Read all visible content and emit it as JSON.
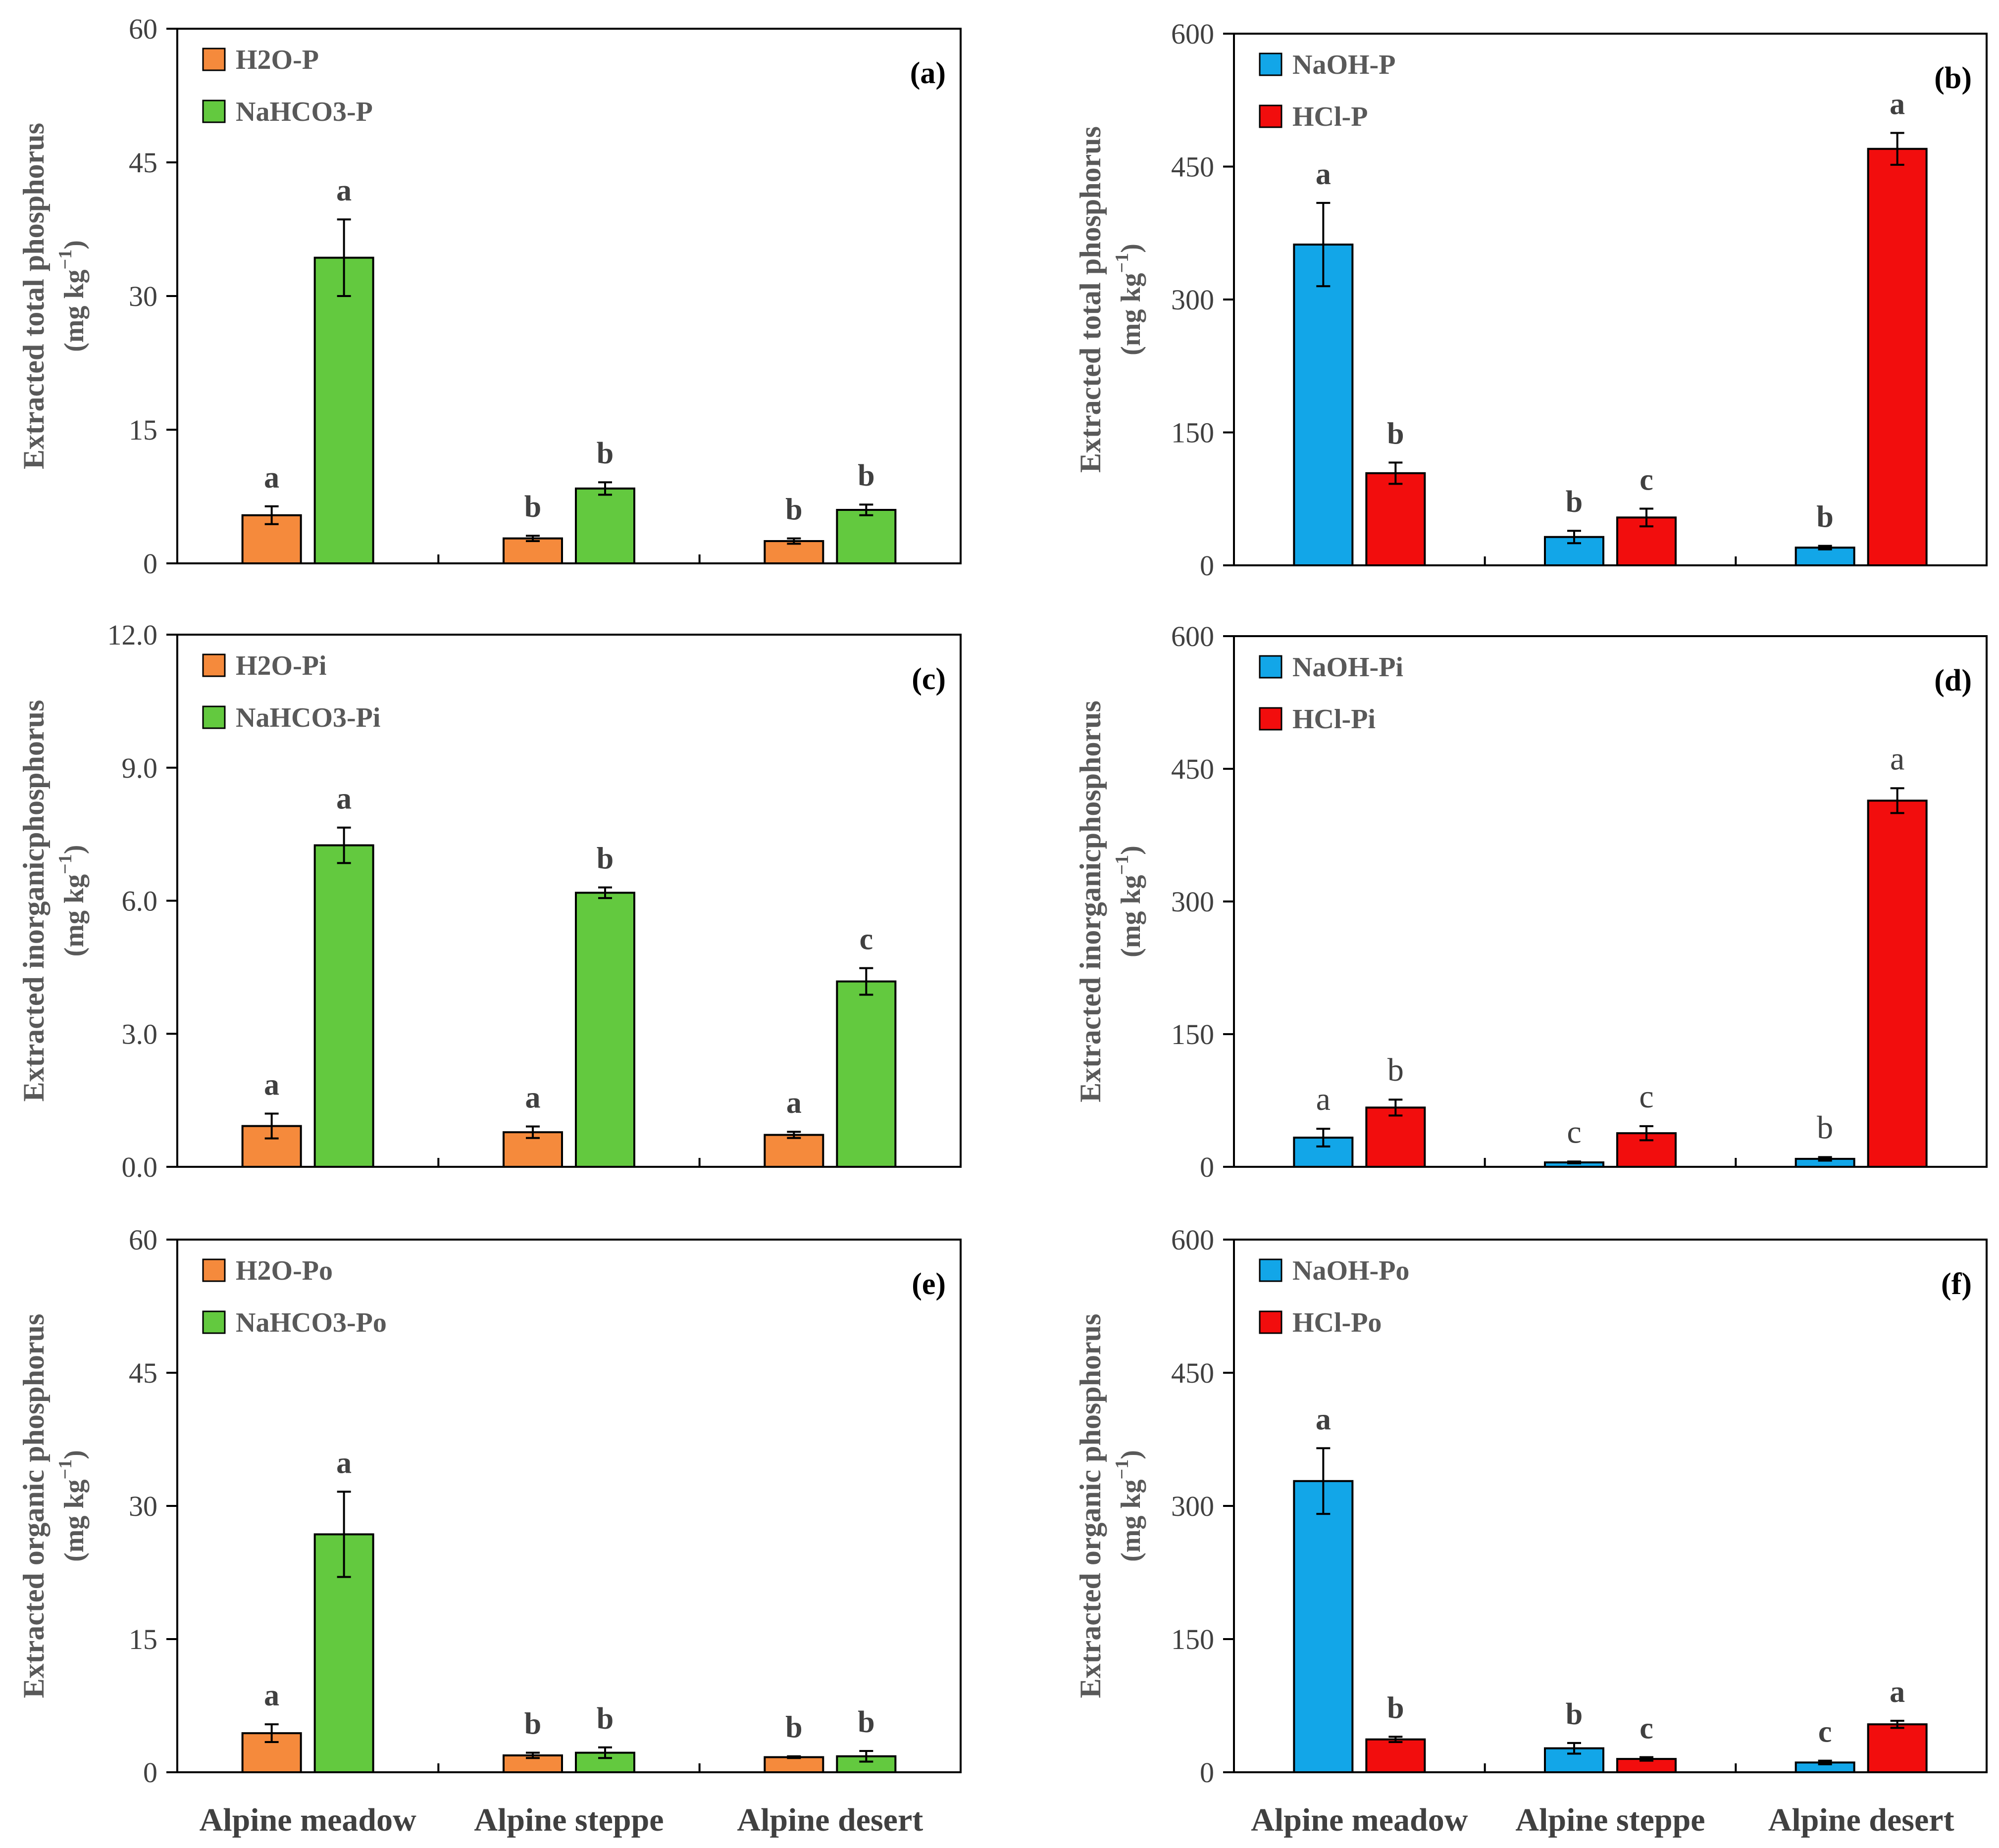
{
  "categories": [
    "Alpine meadow",
    "Alpine steppe",
    "Alpine desert"
  ],
  "colors": {
    "H2O": "#F58A3C",
    "NaHCO3": "#63C93F",
    "NaOH": "#12A6E8",
    "HCl": "#F20D0D",
    "axis": "#000000",
    "text": "#404040"
  },
  "chart_data": [
    {
      "id": "a",
      "type": "bar",
      "panel_label": "(a)",
      "ylabel": "Extracted total phosphorus",
      "yunit_prefix": "(mg kg",
      "yunit_sup": "−1",
      "yunit_suffix": ")",
      "ylim": [
        0,
        60
      ],
      "yticks": [
        "0",
        "15",
        "30",
        "45",
        "60"
      ],
      "ytick_values": [
        0,
        15,
        30,
        45,
        60
      ],
      "legend_position": "top-left",
      "categories": [
        "Alpine meadow",
        "Alpine steppe",
        "Alpine desert"
      ],
      "letter_style": "bold",
      "series": [
        {
          "name": "H2O-P",
          "color": "#F58A3C",
          "values": [
            5.4,
            2.8,
            2.5
          ],
          "errors": [
            1.0,
            0.3,
            0.3
          ],
          "letters": [
            "a",
            "b",
            "b"
          ]
        },
        {
          "name": "NaHCO3-P",
          "color": "#63C93F",
          "values": [
            34.3,
            8.4,
            6.0
          ],
          "errors": [
            4.3,
            0.7,
            0.6
          ],
          "letters": [
            "a",
            "b",
            "b"
          ]
        }
      ]
    },
    {
      "id": "b",
      "type": "bar",
      "panel_label": "(b)",
      "ylabel": "Extracted total phosphorus",
      "yunit_prefix": "(mg kg",
      "yunit_sup": "−1",
      "yunit_suffix": ")",
      "ylim": [
        0,
        600
      ],
      "yticks": [
        "0",
        "150",
        "300",
        "450",
        "600"
      ],
      "ytick_values": [
        0,
        150,
        300,
        450,
        600
      ],
      "legend_position": "top-left",
      "categories": [
        "Alpine meadow",
        "Alpine steppe",
        "Alpine desert"
      ],
      "letter_style": "bold",
      "series": [
        {
          "name": "NaOH-P",
          "color": "#12A6E8",
          "values": [
            362,
            32,
            20
          ],
          "errors": [
            47,
            7,
            2
          ],
          "letters": [
            "a",
            "b",
            "b"
          ]
        },
        {
          "name": "HCl-P",
          "color": "#F20D0D",
          "values": [
            104,
            54,
            470
          ],
          "errors": [
            12,
            10,
            18
          ],
          "letters": [
            "b",
            "c",
            "a"
          ]
        }
      ]
    },
    {
      "id": "c",
      "type": "bar",
      "panel_label": "(c)",
      "ylabel": "Extracted inorganicphosphorus",
      "yunit_prefix": "(mg kg",
      "yunit_sup": "−1",
      "yunit_suffix": ")",
      "ylim": [
        0,
        12
      ],
      "yticks": [
        "0.0",
        "3.0",
        "6.0",
        "9.0",
        "12.0"
      ],
      "ytick_values": [
        0,
        3,
        6,
        9,
        12
      ],
      "legend_position": "top-left",
      "categories": [
        "Alpine meadow",
        "Alpine steppe",
        "Alpine desert"
      ],
      "letter_style": "bold",
      "series": [
        {
          "name": "H2O-Pi",
          "color": "#F58A3C",
          "values": [
            0.92,
            0.78,
            0.72
          ],
          "errors": [
            0.28,
            0.13,
            0.07
          ],
          "letters": [
            "a",
            "a",
            "a"
          ]
        },
        {
          "name": "NaHCO3-Pi",
          "color": "#63C93F",
          "values": [
            7.25,
            6.18,
            4.18
          ],
          "errors": [
            0.4,
            0.12,
            0.3
          ],
          "letters": [
            "a",
            "b",
            "c"
          ]
        }
      ]
    },
    {
      "id": "d",
      "type": "bar",
      "panel_label": "(d)",
      "ylabel": "Extracted inorganicphosphorus",
      "yunit_prefix": "(mg kg",
      "yunit_sup": "−1",
      "yunit_suffix": ")",
      "ylim": [
        0,
        600
      ],
      "yticks": [
        "0",
        "150",
        "300",
        "450",
        "600"
      ],
      "ytick_values": [
        0,
        150,
        300,
        450,
        600
      ],
      "legend_position": "top-left",
      "categories": [
        "Alpine meadow",
        "Alpine steppe",
        "Alpine desert"
      ],
      "letter_style": "plain",
      "series": [
        {
          "name": "NaOH-Pi",
          "color": "#12A6E8",
          "values": [
            33,
            5,
            9
          ],
          "errors": [
            10,
            1,
            2
          ],
          "letters": [
            "a",
            "c",
            "b"
          ]
        },
        {
          "name": "HCl-Pi",
          "color": "#F20D0D",
          "values": [
            67,
            38,
            414
          ],
          "errors": [
            9,
            8,
            14
          ],
          "letters": [
            "b",
            "c",
            "a"
          ]
        }
      ]
    },
    {
      "id": "e",
      "type": "bar",
      "panel_label": "(e)",
      "ylabel": "Extracted organic phosphorus",
      "yunit_prefix": "(mg kg",
      "yunit_sup": "−1",
      "yunit_suffix": ")",
      "ylim": [
        0,
        60
      ],
      "yticks": [
        "0",
        "15",
        "30",
        "45",
        "60"
      ],
      "ytick_values": [
        0,
        15,
        30,
        45,
        60
      ],
      "legend_position": "top-left",
      "categories": [
        "Alpine meadow",
        "Alpine steppe",
        "Alpine desert"
      ],
      "letter_style": "bold",
      "series": [
        {
          "name": "H2O-Po",
          "color": "#F58A3C",
          "values": [
            4.4,
            1.9,
            1.7
          ],
          "errors": [
            1.0,
            0.3,
            0.1
          ],
          "letters": [
            "a",
            "b",
            "b"
          ]
        },
        {
          "name": "NaHCO3-Po",
          "color": "#63C93F",
          "values": [
            26.8,
            2.2,
            1.8
          ],
          "errors": [
            4.8,
            0.6,
            0.6
          ],
          "letters": [
            "a",
            "b",
            "b"
          ]
        }
      ]
    },
    {
      "id": "f",
      "type": "bar",
      "panel_label": "(f)",
      "ylabel": "Extracted organic phosphorus",
      "yunit_prefix": "(mg kg",
      "yunit_sup": "−1",
      "yunit_suffix": ")",
      "ylim": [
        0,
        600
      ],
      "yticks": [
        "0",
        "150",
        "300",
        "450",
        "600"
      ],
      "ytick_values": [
        0,
        150,
        300,
        450,
        600
      ],
      "legend_position": "top-left",
      "categories": [
        "Alpine meadow",
        "Alpine steppe",
        "Alpine desert"
      ],
      "letter_style": "bold",
      "series": [
        {
          "name": "NaOH-Po",
          "color": "#12A6E8",
          "values": [
            328,
            27,
            11
          ],
          "errors": [
            37,
            6,
            2
          ],
          "letters": [
            "a",
            "b",
            "c"
          ]
        },
        {
          "name": "HCl-Po",
          "color": "#F20D0D",
          "values": [
            37,
            15,
            54
          ],
          "errors": [
            3,
            2,
            4
          ],
          "letters": [
            "b",
            "c",
            "a"
          ]
        }
      ]
    }
  ]
}
